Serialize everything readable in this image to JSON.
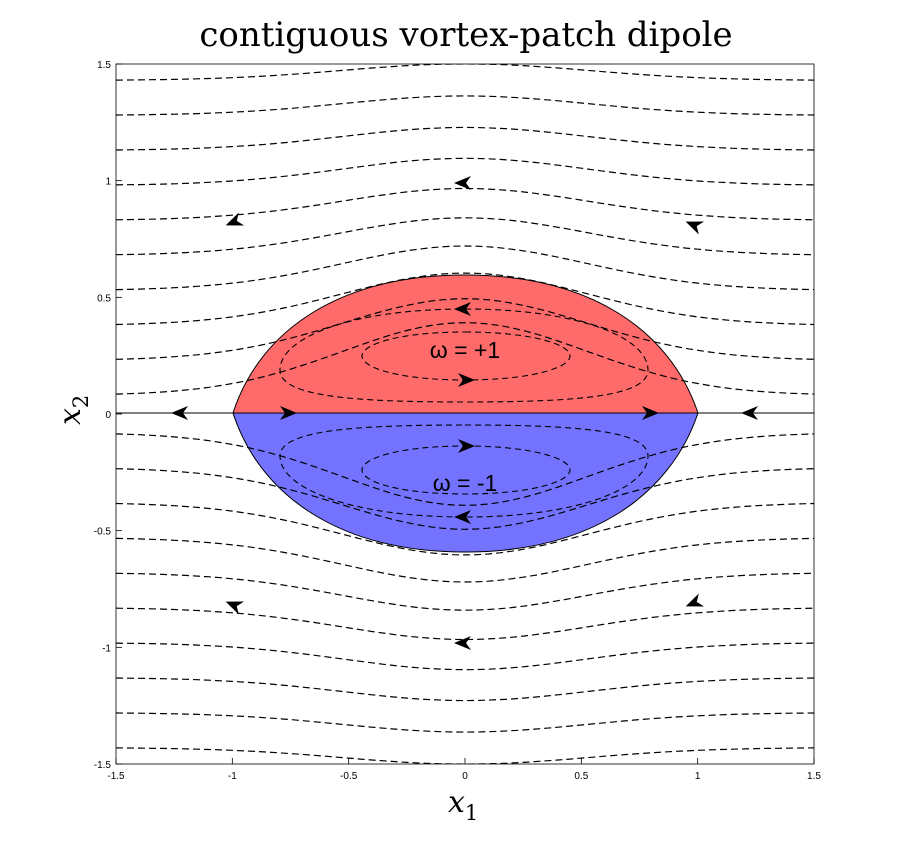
{
  "title": "contiguous vortex-patch dipole",
  "x_axis": {
    "symbol": "x",
    "subscript": "1",
    "ticks": [
      "-1.5",
      "-1",
      "-0.5",
      "0",
      "0.5",
      "1",
      "1.5"
    ]
  },
  "y_axis": {
    "symbol": "x",
    "subscript": "2",
    "ticks": [
      "-1.5",
      "-1",
      "-0.5",
      "0",
      "0.5",
      "1",
      "1.5"
    ]
  },
  "patches": [
    {
      "label": "ω = +1",
      "color": "#ff6b6b"
    },
    {
      "label": "ω = -1",
      "color": "#7373ff"
    }
  ],
  "chart_data": {
    "type": "streamlines",
    "xlim": [
      -1.5,
      1.5
    ],
    "ylim": [
      -1.5,
      1.5
    ],
    "grid": false,
    "patch_boundary_x": [
      -1,
      1
    ],
    "patch_height": 0.6
  }
}
